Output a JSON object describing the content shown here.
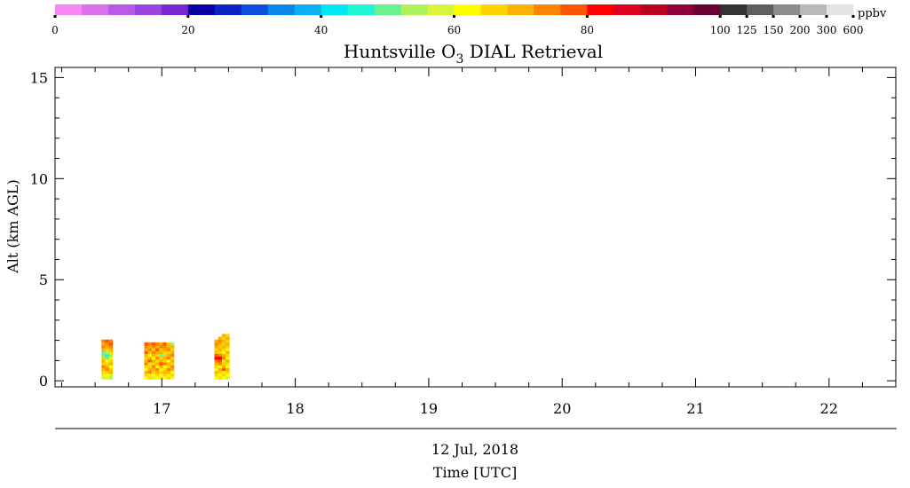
{
  "chart_data": {
    "type": "heatmap",
    "title_main": "Huntsville O",
    "title_sub": "3",
    "title_rest": " DIAL Retrieval",
    "colorbar": {
      "unit": "ppbv",
      "tick_labels": [
        "0",
        "20",
        "40",
        "60",
        "80",
        "100",
        "125",
        "150",
        "200",
        "300",
        "600"
      ],
      "colors": [
        "#f986f2",
        "#dc71ee",
        "#b95ae7",
        "#9a43dd",
        "#7a26d0",
        "#0a00a3",
        "#0b22c5",
        "#0c4fdc",
        "#0a86e8",
        "#0ab0f3",
        "#00e6f6",
        "#1ff6d6",
        "#69f18f",
        "#adf25d",
        "#d8f539",
        "#fefe00",
        "#fdd400",
        "#fcb100",
        "#fc8400",
        "#fc5400",
        "#fc0000",
        "#de001c",
        "#b9001c",
        "#92003a",
        "#6a0033",
        "#333333",
        "#5e5e5e",
        "#8b8b8b",
        "#b8b8b8",
        "#e3e3e3"
      ]
    },
    "xlabel": "Time [UTC]",
    "date_label": "12 Jul, 2018",
    "ylabel": "Alt (km AGL)",
    "xlim": [
      16.2,
      22.5
    ],
    "ylim": [
      -0.3,
      15.5
    ],
    "x_ticks": [
      "17",
      "18",
      "19",
      "20",
      "21",
      "22"
    ],
    "y_ticks": [
      "0",
      "5",
      "10",
      "15"
    ],
    "profiles": [
      {
        "time": 16.59,
        "cols": [
          [
            "#d8f539",
            "#d8f539",
            "#fdd400",
            "#fcb100",
            "#fc8400",
            "#fdd400",
            "#fcb100",
            "#fdd400",
            "#69f18f",
            "#69f18f",
            "#fcb100",
            "#fc8400",
            "#fcb100",
            "#fc8400"
          ],
          [
            "#d8f539",
            "#fefe00",
            "#fdd400",
            "#fc8400",
            "#fcb100",
            "#fdd400",
            "#fefe00",
            "#69f18f",
            "#1ff6d6",
            "#adf25d",
            "#fdd400",
            "#fcb100",
            "#fc8400",
            "#fc5400"
          ],
          [
            "#adf25d",
            "#d8f539",
            "#fcb100",
            "#fdd400",
            "#fefe00",
            "#fcb100",
            "#fdd400",
            "#fefe00",
            "#adf25d",
            "#fdd400",
            "#fcb100",
            "#fc8400",
            "#fc5400",
            "#fc8400"
          ]
        ]
      },
      {
        "time": 16.98,
        "cols": [
          [
            "#fefe00",
            "#fdd400",
            "#fcb100",
            "#fefe00",
            "#fdd400",
            "#fc8400",
            "#fcb100",
            "#fdd400",
            "#fcb100",
            "#fc5400",
            "#fcb100",
            "#fc8400",
            "#fc5400"
          ],
          [
            "#fdd400",
            "#fefe00",
            "#fc8400",
            "#fcb100",
            "#fdd400",
            "#fefe00",
            "#fc5400",
            "#fcb100",
            "#fefe00",
            "#fdd400",
            "#fc8400",
            "#fcb100",
            "#fc8400"
          ],
          [
            "#d8f539",
            "#fefe00",
            "#fdd400",
            "#fcb100",
            "#fc8400",
            "#fdd400",
            "#fcb100",
            "#fefe00",
            "#fcb100",
            "#fc8400",
            "#fdd400",
            "#fc8400",
            "#fc5400"
          ],
          [
            "#fefe00",
            "#fdd400",
            "#fcb100",
            "#fc8400",
            "#fefe00",
            "#fcb100",
            "#fdd400",
            "#fc8400",
            "#fdd400",
            "#fcb100",
            "#fc5400",
            "#fcb100",
            "#fc8400"
          ],
          [
            "#d8f539",
            "#fefe00",
            "#fdd400",
            "#fefe00",
            "#fcb100",
            "#fc5400",
            "#fcb100",
            "#fdd400",
            "#69f18f",
            "#fcb100",
            "#fdd400",
            "#fc8400",
            "#fcb100"
          ],
          [
            "#fefe00",
            "#fdd400",
            "#fcb100",
            "#fdd400",
            "#fefe00",
            "#fc8400",
            "#fdd400",
            "#fcb100",
            "#adf25d",
            "#fdd400",
            "#fcb100",
            "#fc8400",
            "#fc5400"
          ],
          [
            "#fdd400",
            "#fefe00",
            "#fcb100",
            "#fc8400",
            "#fdd400",
            "#fcb100",
            "#fefe00",
            "#fc8400",
            "#fcb100",
            "#fdd400",
            "#fc8400",
            "#fcb100",
            "#fdd400"
          ],
          [
            "#fefe00",
            "#fdd400",
            "#fefe00",
            "#fcb100",
            "#fc8400",
            "#fdd400",
            "#fcb100",
            "#fdd400",
            "#fc8400",
            "#fcb100",
            "#fdd400",
            "#fcb100",
            "#adf25d"
          ]
        ]
      },
      {
        "time": 17.45,
        "cols": [
          [
            "#fefe00",
            "#fdd400",
            "#fcb100",
            "#fefe00",
            "#fdd400",
            "#fcb100",
            "#fc8400",
            "#fc0000",
            "#fc5400",
            "#fcb100",
            "#fdd400",
            "#fcb100",
            "#fc8400",
            "#fcb100"
          ],
          [
            "#fdd400",
            "#fefe00",
            "#fdd400",
            "#fcb100",
            "#fefe00",
            "#fc8400",
            "#fc5400",
            "#fc0000",
            "#fc8400",
            "#fdd400",
            "#fcb100",
            "#fdd400",
            "#fcb100",
            "#fc8400",
            "#fcb100"
          ],
          [
            "#fefe00",
            "#fdd400",
            "#fefe00",
            "#fc5400",
            "#fcb100",
            "#fdd400",
            "#fefe00",
            "#fc8400",
            "#fcb100",
            "#fefe00",
            "#fdd400",
            "#fcb100",
            "#fdd400",
            "#fcb100",
            "#fdd400",
            "#fcb100"
          ],
          [
            "#d8f539",
            "#fefe00",
            "#fdd400",
            "#fcb100",
            "#fefe00",
            "#fdd400",
            "#fcb100",
            "#fefe00",
            "#fdd400",
            "#fcb100",
            "#fefe00",
            "#fdd400",
            "#fcb100",
            "#fdd400",
            "#fcb100",
            "#fdd400"
          ]
        ]
      }
    ],
    "grid": false
  }
}
